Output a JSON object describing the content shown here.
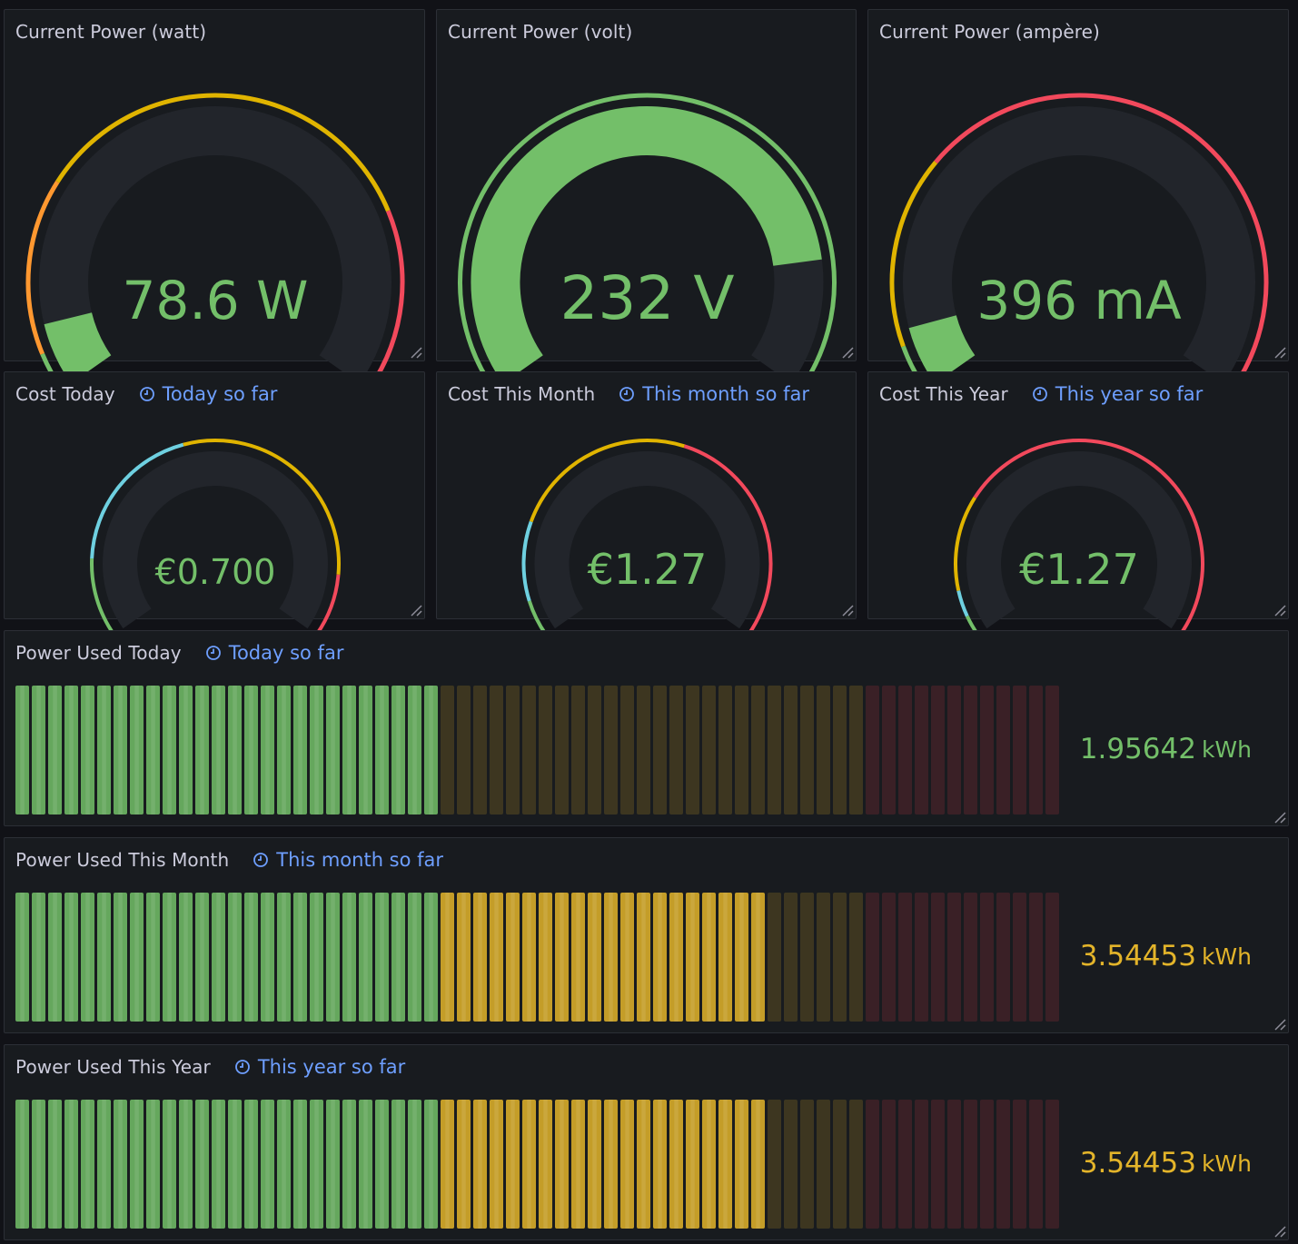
{
  "colors": {
    "green": "#73bf69",
    "yellow": "#fade2a",
    "gold": "#e0b400",
    "orange": "#ff9830",
    "red": "#f2495c",
    "blue": "#6ed0e0",
    "track": "#22252b",
    "link": "#6e9fff"
  },
  "panels": [
    {
      "title": "Current Power (watt)",
      "value": "78.6 W",
      "level": 0.085,
      "thresholds": [
        {
          "from": 0.0,
          "to": 0.05,
          "color": "green"
        },
        {
          "from": 0.05,
          "to": 0.27,
          "color": "orange"
        },
        {
          "from": 0.27,
          "to": 0.77,
          "color": "gold"
        },
        {
          "from": 0.77,
          "to": 1.0,
          "color": "red"
        }
      ]
    },
    {
      "title": "Current Power (volt)",
      "value": "232 V",
      "level": 0.83,
      "thresholds": [
        {
          "from": 0.0,
          "to": 1.0,
          "color": "green"
        }
      ]
    },
    {
      "title": "Current Power (ampère)",
      "value": "396 mA",
      "level": 0.08,
      "thresholds": [
        {
          "from": 0.0,
          "to": 0.06,
          "color": "green"
        },
        {
          "from": 0.06,
          "to": 0.3,
          "color": "gold"
        },
        {
          "from": 0.3,
          "to": 1.0,
          "color": "red"
        }
      ]
    },
    {
      "title": "Cost Today",
      "time_info": "Today so far",
      "value": "€0.700",
      "thresholds": [
        {
          "from": 0.0,
          "to": 0.15,
          "color": "green"
        },
        {
          "from": 0.15,
          "to": 0.44,
          "color": "blue"
        },
        {
          "from": 0.44,
          "to": 0.88,
          "color": "gold"
        },
        {
          "from": 0.88,
          "to": 1.0,
          "color": "red"
        }
      ]
    },
    {
      "title": "Cost This Month",
      "time_info": "This month so far",
      "value": "€1.27",
      "thresholds": [
        {
          "from": 0.0,
          "to": 0.07,
          "color": "green"
        },
        {
          "from": 0.07,
          "to": 0.22,
          "color": "blue"
        },
        {
          "from": 0.22,
          "to": 0.57,
          "color": "gold"
        },
        {
          "from": 0.57,
          "to": 1.0,
          "color": "red"
        }
      ]
    },
    {
      "title": "Cost This Year",
      "time_info": "This year so far",
      "value": "€1.27",
      "thresholds": [
        {
          "from": 0.0,
          "to": 0.04,
          "color": "green"
        },
        {
          "from": 0.04,
          "to": 0.09,
          "color": "blue"
        },
        {
          "from": 0.09,
          "to": 0.27,
          "color": "gold"
        },
        {
          "from": 0.27,
          "to": 1.0,
          "color": "red"
        }
      ]
    },
    {
      "title": "Power Used Today",
      "time_info": "Today so far",
      "value": "1.95642",
      "unit": "kWh",
      "lit_cells": 26,
      "value_color": "green",
      "cells": [
        "green",
        "green",
        "green",
        "green",
        "green",
        "green",
        "green",
        "green",
        "green",
        "green",
        "green",
        "green",
        "green",
        "green",
        "green",
        "green",
        "green",
        "green",
        "green",
        "green",
        "green",
        "green",
        "green",
        "green",
        "green",
        "green",
        "gold",
        "gold",
        "gold",
        "gold",
        "gold",
        "gold",
        "gold",
        "gold",
        "gold",
        "gold",
        "gold",
        "gold",
        "gold",
        "gold",
        "gold",
        "gold",
        "gold",
        "gold",
        "gold",
        "gold",
        "gold",
        "gold",
        "gold",
        "gold",
        "gold",
        "gold",
        "red",
        "red",
        "red",
        "red",
        "red",
        "red",
        "red",
        "red",
        "red",
        "red",
        "red",
        "red"
      ]
    },
    {
      "title": "Power Used This Month",
      "time_info": "This month so far",
      "value": "3.54453",
      "unit": "kWh",
      "lit_cells": 46,
      "value_color": "gold",
      "cells": [
        "green",
        "green",
        "green",
        "green",
        "green",
        "green",
        "green",
        "green",
        "green",
        "green",
        "green",
        "green",
        "green",
        "green",
        "green",
        "green",
        "green",
        "green",
        "green",
        "green",
        "green",
        "green",
        "green",
        "green",
        "green",
        "green",
        "gold",
        "gold",
        "gold",
        "gold",
        "gold",
        "gold",
        "gold",
        "gold",
        "gold",
        "gold",
        "gold",
        "gold",
        "gold",
        "gold",
        "gold",
        "gold",
        "gold",
        "gold",
        "gold",
        "gold",
        "gold",
        "gold",
        "gold",
        "gold",
        "gold",
        "gold",
        "red",
        "red",
        "red",
        "red",
        "red",
        "red",
        "red",
        "red",
        "red",
        "red",
        "red",
        "red"
      ]
    },
    {
      "title": "Power Used This Year",
      "time_info": "This year so far",
      "value": "3.54453",
      "unit": "kWh",
      "lit_cells": 46,
      "value_color": "gold",
      "cells": [
        "green",
        "green",
        "green",
        "green",
        "green",
        "green",
        "green",
        "green",
        "green",
        "green",
        "green",
        "green",
        "green",
        "green",
        "green",
        "green",
        "green",
        "green",
        "green",
        "green",
        "green",
        "green",
        "green",
        "green",
        "green",
        "green",
        "gold",
        "gold",
        "gold",
        "gold",
        "gold",
        "gold",
        "gold",
        "gold",
        "gold",
        "gold",
        "gold",
        "gold",
        "gold",
        "gold",
        "gold",
        "gold",
        "gold",
        "gold",
        "gold",
        "gold",
        "gold",
        "gold",
        "gold",
        "gold",
        "gold",
        "gold",
        "red",
        "red",
        "red",
        "red",
        "red",
        "red",
        "red",
        "red",
        "red",
        "red",
        "red",
        "red"
      ]
    }
  ]
}
